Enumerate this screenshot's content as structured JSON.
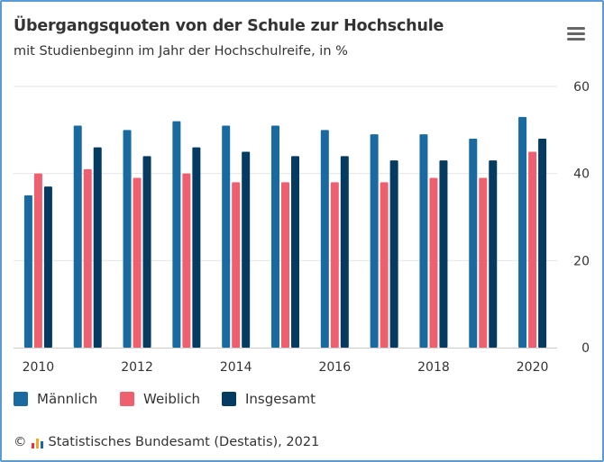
{
  "header": {
    "title": "Übergangsquoten von der Schule zur Hochschule",
    "subtitle": "mit Studienbeginn im Jahr der Hochschulreife, in %"
  },
  "legend": [
    {
      "label": "Männlich",
      "color": "#1a6aa2"
    },
    {
      "label": "Weiblich",
      "color": "#ee6070"
    },
    {
      "label": "Insgesamt",
      "color": "#053b61"
    }
  ],
  "credits": {
    "prefix": "©",
    "text": "Statistisches Bundesamt (Destatis), 2021",
    "logo_colors": [
      "#e53341",
      "#f5a623",
      "#1a6aa2"
    ]
  },
  "colors": {
    "gridline": "#e6e6e6",
    "axis_line": "#cccccc",
    "border": "#5b9bd5"
  },
  "chart_data": {
    "type": "bar",
    "title": "Übergangsquoten von der Schule zur Hochschule",
    "subtitle": "mit Studienbeginn im Jahr der Hochschulreife, in %",
    "categories": [
      "2010",
      "2011",
      "2012",
      "2013",
      "2014",
      "2015",
      "2016",
      "2017",
      "2018",
      "2019",
      "2020"
    ],
    "x_tick_labels": [
      "2010",
      "",
      "2012",
      "",
      "2014",
      "",
      "2016",
      "",
      "2018",
      "",
      "2020"
    ],
    "series": [
      {
        "name": "Männlich",
        "color": "#1a6aa2",
        "values": [
          35,
          51,
          50,
          52,
          51,
          51,
          50,
          49,
          49,
          48,
          53
        ]
      },
      {
        "name": "Weiblich",
        "color": "#ee6070",
        "values": [
          40,
          41,
          39,
          40,
          38,
          38,
          38,
          38,
          39,
          39,
          45
        ]
      },
      {
        "name": "Insgesamt",
        "color": "#053b61",
        "values": [
          37,
          46,
          44,
          46,
          45,
          44,
          44,
          43,
          43,
          43,
          48
        ]
      }
    ],
    "ylim": [
      0,
      60
    ],
    "y_ticks": [
      0,
      20,
      40,
      60
    ],
    "y_axis_side": "right",
    "grid": true,
    "legend_position": "bottom-left",
    "xlabel": "",
    "ylabel": ""
  }
}
